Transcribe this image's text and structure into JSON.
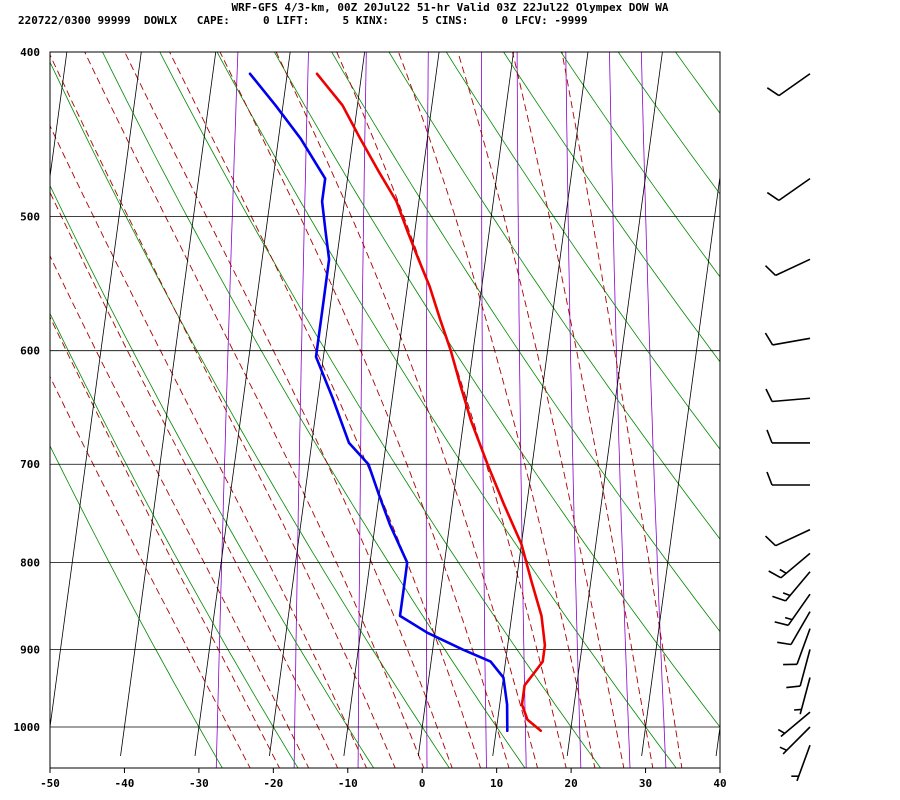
{
  "header": {
    "line1": "WRF-GFS 4/3-km, 00Z 20Jul22 51-hr Valid 03Z 22Jul22 Olympex DOW WA",
    "line2": "220722/0300 99999  DOWLX   CAPE:     0 LIFT:     5 KINX:     5 CINS:     0 LFCV: -9999"
  },
  "chart_data": {
    "type": "line",
    "skew_t": true,
    "xlim": [
      -50,
      40
    ],
    "ylim": [
      1040,
      400
    ],
    "y_log_scale": true,
    "x_ticks": [
      "-50",
      "-40",
      "-30",
      "-20",
      "-10",
      "0",
      "10",
      "20",
      "30",
      "40"
    ],
    "y_ticks": [
      "400",
      "500",
      "600",
      "700",
      "800",
      "900",
      "1000"
    ],
    "grid": true,
    "series": [
      {
        "color": "#ee0000",
        "points": [
          [
            16,
            1005
          ],
          [
            14,
            990
          ],
          [
            13,
            970
          ],
          [
            13,
            945
          ],
          [
            14,
            930
          ],
          [
            15,
            915
          ],
          [
            15,
            895
          ],
          [
            14,
            860
          ],
          [
            12,
            820
          ],
          [
            10,
            780
          ],
          [
            7,
            740
          ],
          [
            4,
            700
          ],
          [
            1,
            660
          ],
          [
            -1,
            630
          ],
          [
            -3,
            600
          ],
          [
            -5,
            575
          ],
          [
            -7,
            550
          ],
          [
            -9,
            530
          ],
          [
            -11,
            510
          ],
          [
            -13,
            490
          ],
          [
            -16,
            470
          ],
          [
            -19,
            450
          ],
          [
            -22,
            430
          ],
          [
            -26,
            412
          ]
        ]
      },
      {
        "color": "#0000ee",
        "points": [
          [
            11.5,
            1005
          ],
          [
            11,
            970
          ],
          [
            10,
            935
          ],
          [
            8,
            915
          ],
          [
            4,
            900
          ],
          [
            -1,
            880
          ],
          [
            -5,
            860
          ],
          [
            -5,
            820
          ],
          [
            -5,
            800
          ],
          [
            -8,
            760
          ],
          [
            -10,
            730
          ],
          [
            -12,
            700
          ],
          [
            -15,
            680
          ],
          [
            -18,
            640
          ],
          [
            -21,
            605
          ],
          [
            -21,
            590
          ],
          [
            -21,
            560
          ],
          [
            -21,
            530
          ],
          [
            -22,
            510
          ],
          [
            -23,
            490
          ],
          [
            -23,
            475
          ],
          [
            -27,
            450
          ],
          [
            -31,
            430
          ],
          [
            -35,
            412
          ]
        ]
      }
    ],
    "wind_barbs": [
      {
        "p": 412,
        "dir": 235,
        "spd": 10
      },
      {
        "p": 475,
        "dir": 235,
        "spd": 10
      },
      {
        "p": 530,
        "dir": 245,
        "spd": 10
      },
      {
        "p": 590,
        "dir": 260,
        "spd": 10
      },
      {
        "p": 640,
        "dir": 265,
        "spd": 10
      },
      {
        "p": 680,
        "dir": 270,
        "spd": 10
      },
      {
        "p": 720,
        "dir": 270,
        "spd": 10
      },
      {
        "p": 765,
        "dir": 245,
        "spd": 10
      },
      {
        "p": 790,
        "dir": 230,
        "spd": 15
      },
      {
        "p": 810,
        "dir": 220,
        "spd": 15
      },
      {
        "p": 835,
        "dir": 215,
        "spd": 15
      },
      {
        "p": 855,
        "dir": 210,
        "spd": 10
      },
      {
        "p": 875,
        "dir": 200,
        "spd": 10
      },
      {
        "p": 900,
        "dir": 195,
        "spd": 10
      },
      {
        "p": 935,
        "dir": 195,
        "spd": 5
      },
      {
        "p": 980,
        "dir": 230,
        "spd": 5
      },
      {
        "p": 1000,
        "dir": 225,
        "spd": 5
      },
      {
        "p": 1025,
        "dir": 200,
        "spd": 5
      }
    ],
    "colors": {
      "isotherm": "#000000",
      "dry_adiabat": "#008800",
      "moist_adiabat": "#aa0000",
      "mixing_ratio": "#8800cc",
      "temperature": "#ee0000",
      "dewpoint": "#0000ee",
      "wind_barb": "#000000"
    }
  }
}
